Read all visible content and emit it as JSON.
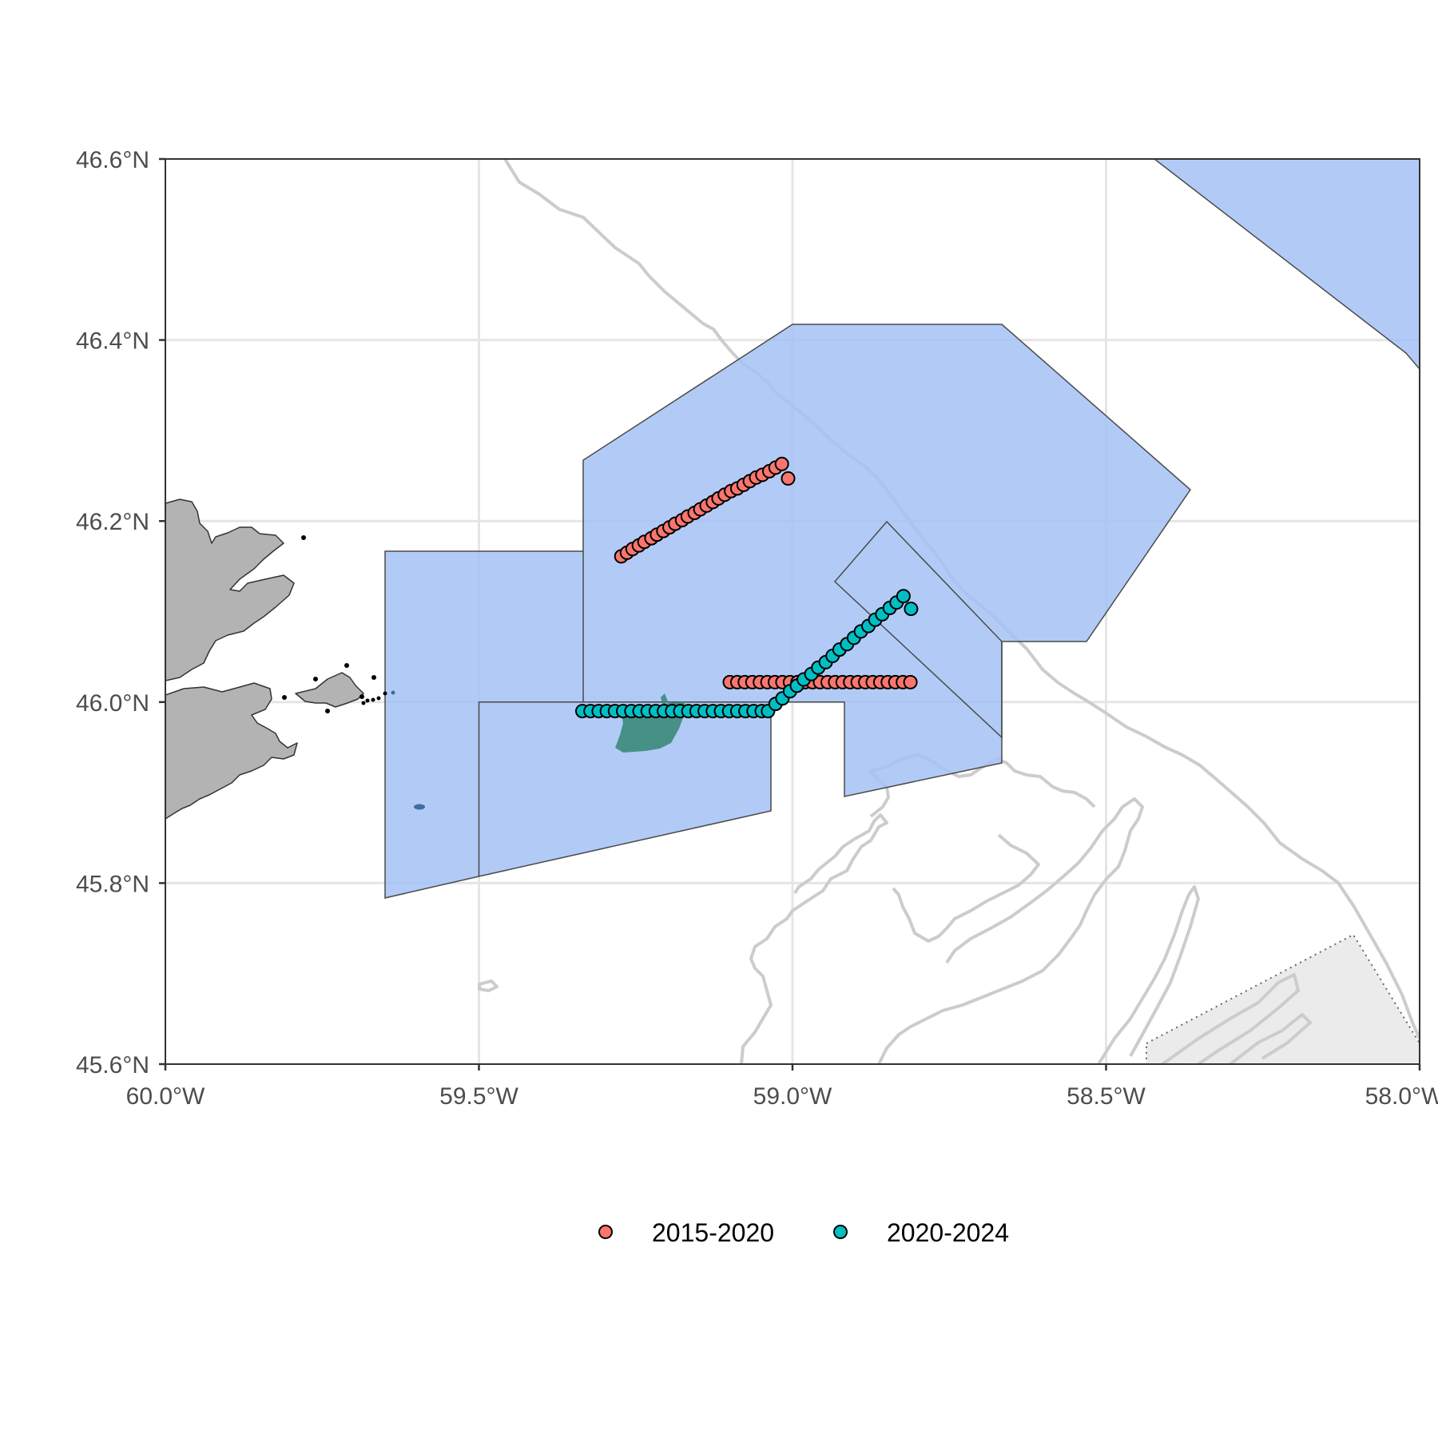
{
  "colors": {
    "zone_fill": "#a4c2f4",
    "zone_stroke": "#4a4a4a",
    "land": "#b3b3b3",
    "contour": "#cccccc",
    "grid": "#e5e5e5",
    "patch": "#3b8a7a",
    "shaded_area": "#ebebeb",
    "series_2015": "#f8766d",
    "series_2020": "#00bfc4"
  },
  "chart_data": {
    "type": "map",
    "xlim": [
      -60.0,
      -58.0
    ],
    "ylim": [
      45.6,
      46.6
    ],
    "x_ticks": [
      -60.0,
      -59.5,
      -59.0,
      -58.5,
      -58.0
    ],
    "y_ticks": [
      45.6,
      45.8,
      46.0,
      46.2,
      46.4,
      46.6
    ],
    "x_tick_labels": [
      "60.0°W",
      "59.5°W",
      "59.0°W",
      "58.5°W",
      "58.0°W"
    ],
    "y_tick_labels": [
      "45.6°N",
      "45.8°N",
      "46.0°N",
      "46.2°N",
      "46.4°N",
      "46.6°N"
    ],
    "grid": true,
    "legend_position": "bottom",
    "series": [
      {
        "name": "2015-2020",
        "color": "#f8766d",
        "points": [
          [
            -59.273,
            46.161
          ],
          [
            -59.264,
            46.165
          ],
          [
            -59.255,
            46.169
          ],
          [
            -59.245,
            46.173
          ],
          [
            -59.236,
            46.177
          ],
          [
            -59.225,
            46.181
          ],
          [
            -59.216,
            46.185
          ],
          [
            -59.206,
            46.189
          ],
          [
            -59.196,
            46.193
          ],
          [
            -59.187,
            46.197
          ],
          [
            -59.176,
            46.201
          ],
          [
            -59.167,
            46.205
          ],
          [
            -59.156,
            46.209
          ],
          [
            -59.147,
            46.213
          ],
          [
            -59.137,
            46.217
          ],
          [
            -59.127,
            46.221
          ],
          [
            -59.118,
            46.225
          ],
          [
            -59.108,
            46.229
          ],
          [
            -59.098,
            46.233
          ],
          [
            -59.088,
            46.236
          ],
          [
            -59.078,
            46.24
          ],
          [
            -59.068,
            46.244
          ],
          [
            -59.058,
            46.248
          ],
          [
            -59.048,
            46.251
          ],
          [
            -59.037,
            46.255
          ],
          [
            -59.027,
            46.259
          ],
          [
            -59.017,
            46.263
          ],
          [
            -59.007,
            46.247
          ],
          [
            -59.1,
            46.022
          ],
          [
            -59.088,
            46.022
          ],
          [
            -59.076,
            46.022
          ],
          [
            -59.064,
            46.022
          ],
          [
            -59.052,
            46.022
          ],
          [
            -59.04,
            46.022
          ],
          [
            -59.028,
            46.022
          ],
          [
            -59.016,
            46.022
          ],
          [
            -59.004,
            46.022
          ],
          [
            -58.992,
            46.022
          ],
          [
            -58.98,
            46.022
          ],
          [
            -58.968,
            46.022
          ],
          [
            -58.956,
            46.022
          ],
          [
            -58.944,
            46.022
          ],
          [
            -58.932,
            46.022
          ],
          [
            -58.92,
            46.022
          ],
          [
            -58.908,
            46.022
          ],
          [
            -58.896,
            46.022
          ],
          [
            -58.884,
            46.022
          ],
          [
            -58.872,
            46.022
          ],
          [
            -58.86,
            46.022
          ],
          [
            -58.848,
            46.022
          ],
          [
            -58.836,
            46.022
          ],
          [
            -58.824,
            46.022
          ],
          [
            -58.812,
            46.022
          ]
        ]
      },
      {
        "name": "2020-2024",
        "color": "#00bfc4",
        "points": [
          [
            -59.335,
            45.99
          ],
          [
            -59.322,
            45.99
          ],
          [
            -59.309,
            45.99
          ],
          [
            -59.296,
            45.99
          ],
          [
            -59.283,
            45.99
          ],
          [
            -59.27,
            45.99
          ],
          [
            -59.257,
            45.99
          ],
          [
            -59.244,
            45.99
          ],
          [
            -59.231,
            45.99
          ],
          [
            -59.218,
            45.99
          ],
          [
            -59.205,
            45.99
          ],
          [
            -59.192,
            45.99
          ],
          [
            -59.179,
            45.99
          ],
          [
            -59.166,
            45.99
          ],
          [
            -59.153,
            45.99
          ],
          [
            -59.14,
            45.99
          ],
          [
            -59.127,
            45.99
          ],
          [
            -59.114,
            45.99
          ],
          [
            -59.101,
            45.99
          ],
          [
            -59.088,
            45.99
          ],
          [
            -59.075,
            45.99
          ],
          [
            -59.062,
            45.99
          ],
          [
            -59.049,
            45.99
          ],
          [
            -59.039,
            45.99
          ],
          [
            -59.027,
            45.998
          ],
          [
            -59.016,
            46.004
          ],
          [
            -59.004,
            46.012
          ],
          [
            -58.993,
            46.018
          ],
          [
            -58.982,
            46.025
          ],
          [
            -58.97,
            46.031
          ],
          [
            -58.959,
            46.038
          ],
          [
            -58.947,
            46.044
          ],
          [
            -58.936,
            46.051
          ],
          [
            -58.925,
            46.058
          ],
          [
            -58.913,
            46.064
          ],
          [
            -58.902,
            46.071
          ],
          [
            -58.891,
            46.078
          ],
          [
            -58.879,
            46.084
          ],
          [
            -58.868,
            46.091
          ],
          [
            -58.857,
            46.097
          ],
          [
            -58.845,
            46.104
          ],
          [
            -58.834,
            46.11
          ],
          [
            -58.823,
            46.117
          ],
          [
            -58.811,
            46.103
          ]
        ]
      }
    ]
  },
  "legend": {
    "items": [
      {
        "label": "2015-2020",
        "color": "#f8766d"
      },
      {
        "label": "2020-2024",
        "color": "#00bfc4"
      }
    ]
  }
}
